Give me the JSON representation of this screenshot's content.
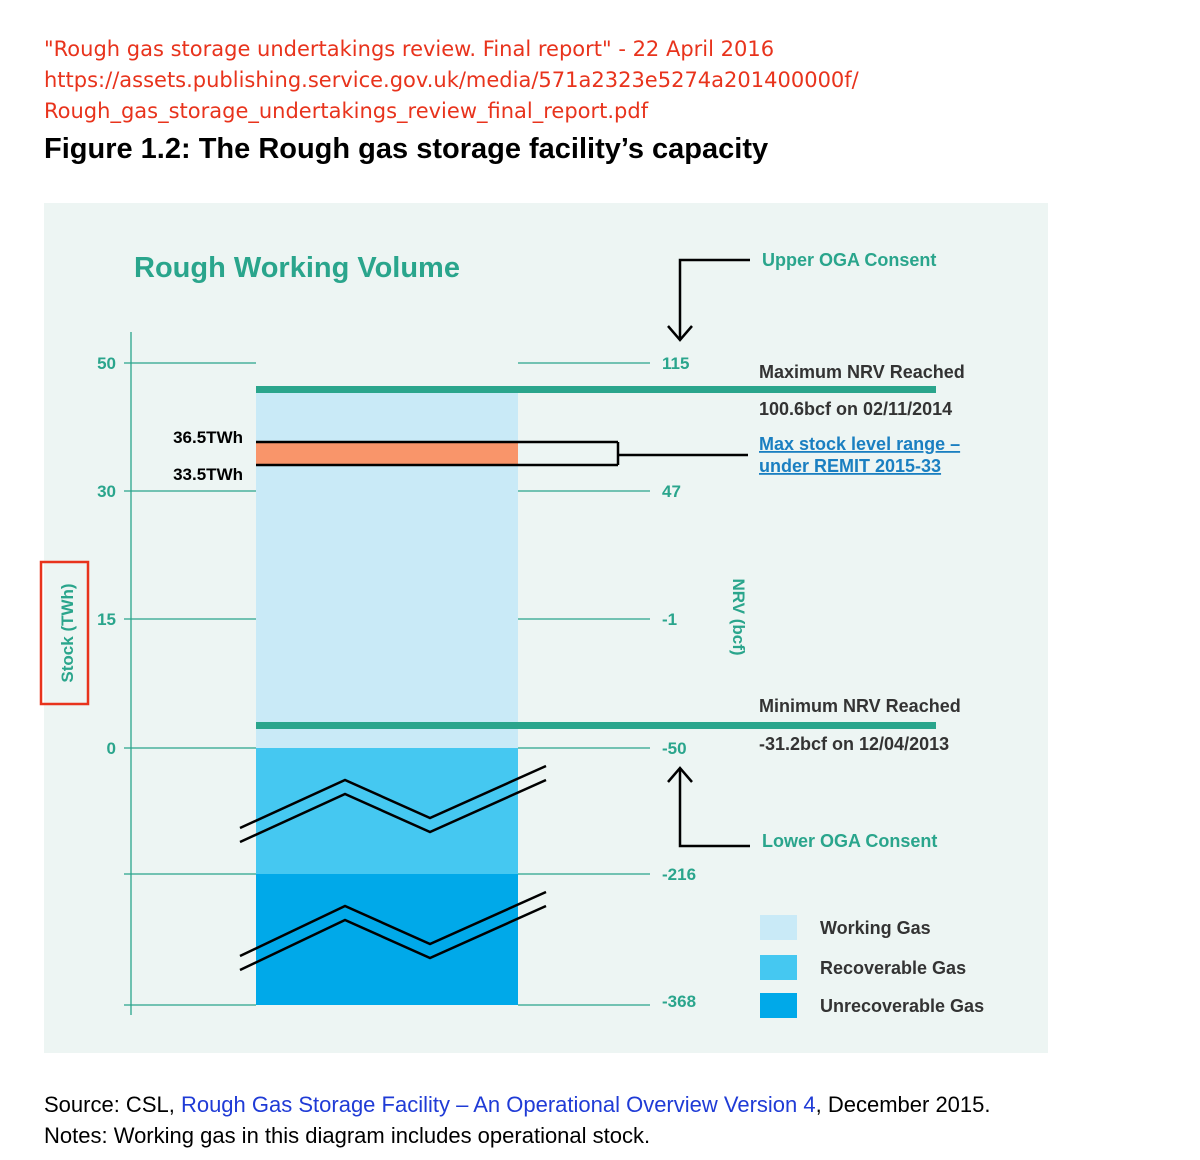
{
  "citation": {
    "line1": "\"Rough gas storage undertakings review. Final report\" - 22 April 2016",
    "line2": "https://assets.publishing.service.gov.uk/media/571a2323e5274a201400000f/",
    "line3": "Rough_gas_storage_undertakings_review_final_report.pdf"
  },
  "figure_title": "Figure 1.2:  The Rough gas storage facility’s capacity",
  "colors": {
    "teal": "#2aa58c",
    "working_gas": "#c9eaf7",
    "recoverable_gas": "#45c8f1",
    "unrecoverable_gas": "#00a9e9",
    "remit_band": "#f9956a",
    "highlight_box": "#e8331c",
    "panel_bg": "#edf5f3"
  },
  "chart_data": {
    "type": "bar",
    "title": "Rough Working Volume",
    "ylabel": "Stock (TWh)",
    "y2label": "NRV (bcf)",
    "left_ticks": [
      "50",
      "30",
      "15",
      "0"
    ],
    "right_ticks": [
      "115",
      "47",
      "-1",
      "-50",
      "-216",
      "-368"
    ],
    "segments": [
      {
        "name": "Working Gas",
        "color": "#c9eaf7"
      },
      {
        "name": "Recoverable Gas",
        "color": "#45c8f1"
      },
      {
        "name": "Unrecoverable Gas",
        "color": "#00a9e9"
      }
    ],
    "remit_band": {
      "upper": "36.5TWh",
      "lower": "33.5TWh",
      "upper_value": 36.5,
      "lower_value": 33.5
    },
    "annotations": {
      "upper_consent": "Upper OGA Consent",
      "lower_consent": "Lower OGA Consent",
      "max_nrv_title": "Maximum NRV Reached",
      "max_nrv_value": "100.6bcf on 02/11/2014",
      "min_nrv_title": "Minimum NRV Reached",
      "min_nrv_value": "-31.2bcf on 12/04/2013",
      "remit_link_line1": "Max stock level range –",
      "remit_link_line2": "under REMIT 2015-33"
    },
    "legend": [
      "Working Gas",
      "Recoverable Gas",
      "Unrecoverable Gas"
    ],
    "grid": true,
    "legend_position": "bottom-right"
  },
  "footer": {
    "source_prefix": "Source: CSL, ",
    "source_link": "Rough Gas Storage Facility – An Operational Overview Version 4",
    "source_suffix": ", December 2015.",
    "notes": "Notes: Working gas in this diagram includes operational stock."
  }
}
